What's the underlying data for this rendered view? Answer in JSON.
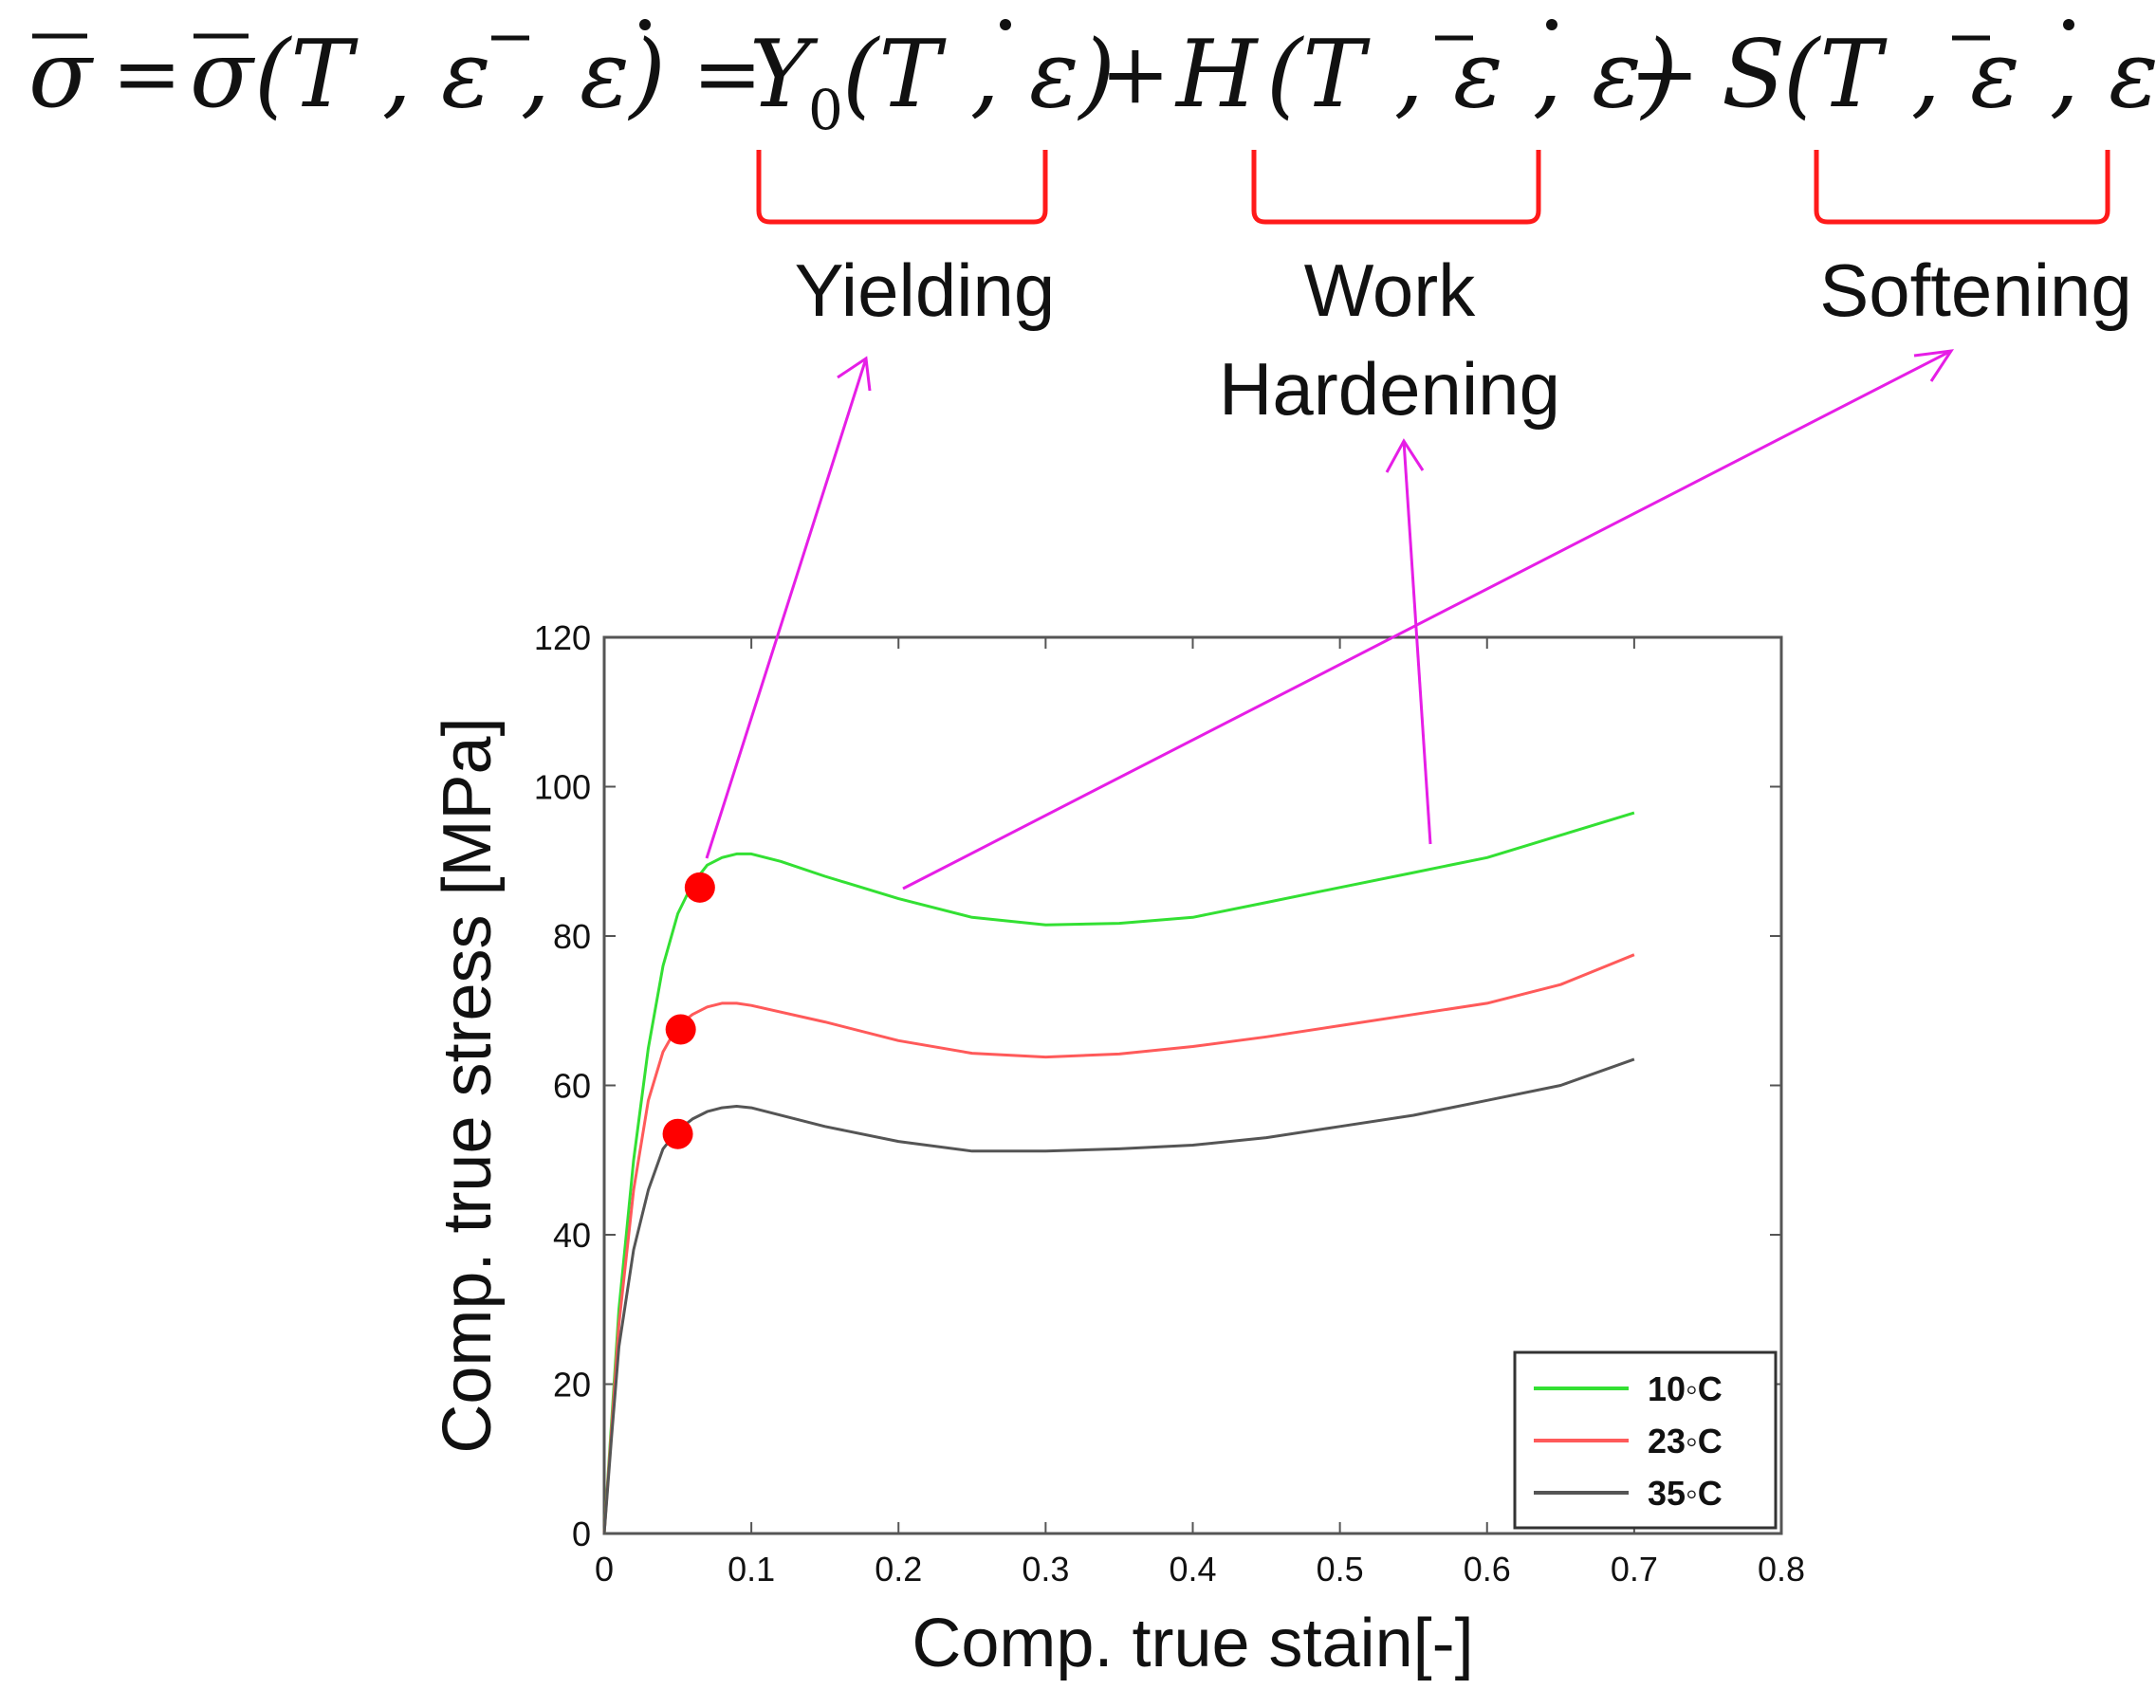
{
  "equation": {
    "lhs": "σ",
    "eq1": "=",
    "sigma_fn": "σ",
    "args1": "(T , ε , ε)",
    "eq2": "=",
    "y_sym": "Y",
    "y_sub": "0",
    "y_args": "(T , ε)",
    "plus": "+",
    "h_sym": "H",
    "h_args": "(T , ε , ε)",
    "minus": "−",
    "s_sym": "S",
    "s_args": "(T , ε , ε)"
  },
  "annotations": {
    "yielding": "Yielding",
    "work_line1": "Work",
    "work_line2": "Hardening",
    "softening": "Softening"
  },
  "colors": {
    "bracket": "#ff1a1a",
    "arrow": "#e61ee6",
    "marker": "#ff0000"
  },
  "chart_data": {
    "type": "line",
    "xlabel": "Comp. true stain[-]",
    "ylabel": "Comp. true stress [MPa]",
    "xlim": [
      0,
      0.8
    ],
    "ylim": [
      0,
      120
    ],
    "xticks": [
      0,
      0.1,
      0.2,
      0.3,
      0.4,
      0.5,
      0.6,
      0.7,
      0.8
    ],
    "xtick_labels": [
      "0",
      "0.1",
      "0.2",
      "0.3",
      "0.4",
      "0.5",
      "0.6",
      "0.7",
      "0.8"
    ],
    "yticks": [
      0,
      20,
      40,
      60,
      80,
      100,
      120
    ],
    "ytick_labels": [
      "0",
      "20",
      "40",
      "60",
      "80",
      "100",
      "120"
    ],
    "grid": false,
    "legend_position": "bottom-right",
    "series": [
      {
        "name": "10◦C",
        "color": "#33e033",
        "x": [
          0,
          0.005,
          0.01,
          0.02,
          0.03,
          0.04,
          0.05,
          0.06,
          0.07,
          0.08,
          0.09,
          0.1,
          0.12,
          0.15,
          0.2,
          0.25,
          0.3,
          0.35,
          0.4,
          0.45,
          0.5,
          0.55,
          0.6,
          0.65,
          0.7
        ],
        "y": [
          0,
          15,
          30,
          50,
          65,
          76,
          83,
          87,
          89.5,
          90.5,
          91,
          91,
          90,
          88,
          85,
          82.5,
          81.5,
          81.7,
          82.5,
          84.5,
          86.5,
          88.5,
          90.5,
          93.5,
          96.5
        ]
      },
      {
        "name": "23◦C",
        "color": "#ff5a5a",
        "x": [
          0,
          0.005,
          0.01,
          0.02,
          0.03,
          0.04,
          0.05,
          0.06,
          0.07,
          0.08,
          0.09,
          0.1,
          0.15,
          0.2,
          0.25,
          0.3,
          0.35,
          0.4,
          0.45,
          0.5,
          0.55,
          0.6,
          0.65,
          0.7
        ],
        "y": [
          0,
          14,
          28,
          46,
          58,
          64.5,
          68,
          69.5,
          70.5,
          71,
          71,
          70.7,
          68.5,
          66,
          64.3,
          63.8,
          64.2,
          65.2,
          66.5,
          68,
          69.5,
          71,
          73.5,
          77.5
        ]
      },
      {
        "name": "35◦C",
        "color": "#555555",
        "x": [
          0,
          0.005,
          0.01,
          0.02,
          0.03,
          0.04,
          0.05,
          0.06,
          0.07,
          0.08,
          0.09,
          0.1,
          0.15,
          0.2,
          0.25,
          0.3,
          0.35,
          0.4,
          0.45,
          0.5,
          0.55,
          0.6,
          0.65,
          0.7
        ],
        "y": [
          0,
          13,
          25,
          38,
          46,
          51.5,
          54,
          55.5,
          56.5,
          57,
          57.2,
          57,
          54.5,
          52.5,
          51.2,
          51.2,
          51.5,
          52,
          53,
          54.5,
          56,
          58,
          60,
          63.5
        ]
      }
    ],
    "yield_points": [
      {
        "series": "10◦C",
        "x": 0.065,
        "y": 86.5
      },
      {
        "series": "23◦C",
        "x": 0.052,
        "y": 67.5
      },
      {
        "series": "35◦C",
        "x": 0.05,
        "y": 53.5
      }
    ]
  }
}
